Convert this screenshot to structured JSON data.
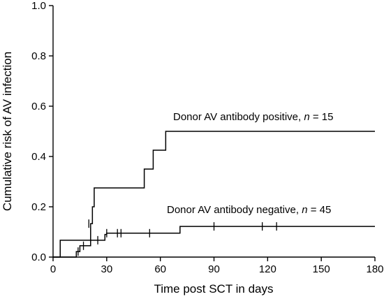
{
  "chart_data": {
    "type": "line",
    "step": true,
    "xlabel": "Time post SCT in days",
    "ylabel": "Cumulative risk of AV infection",
    "xlim": [
      0,
      180
    ],
    "ylim": [
      0,
      1.0
    ],
    "xticks": [
      0,
      30,
      60,
      90,
      120,
      150,
      180
    ],
    "yticks": [
      0.0,
      0.2,
      0.4,
      0.6,
      0.8,
      1.0
    ],
    "ytick_labels": [
      "0.0",
      "0.2",
      "0.4",
      "0.6",
      "0.8",
      "1.0"
    ],
    "grid": false,
    "legend": "none",
    "annotations": [
      {
        "prefix": "Donor AV antibody positive, ",
        "n_symbol": "n",
        "suffix": " = 15"
      },
      {
        "prefix": "Donor AV antibody negative, ",
        "n_symbol": "n",
        "suffix": " = 45"
      }
    ],
    "series": [
      {
        "steps": [
          [
            0,
            0.0
          ],
          [
            4,
            0.067
          ],
          [
            21,
            0.133
          ],
          [
            22,
            0.2
          ],
          [
            23,
            0.275
          ],
          [
            51,
            0.35
          ],
          [
            56,
            0.425
          ],
          [
            63,
            0.5
          ],
          [
            180,
            0.5
          ]
        ],
        "censored": [
          [
            20,
            0.133
          ]
        ]
      },
      {
        "steps": [
          [
            0,
            0.0
          ],
          [
            13,
            0.022
          ],
          [
            15,
            0.045
          ],
          [
            21,
            0.067
          ],
          [
            29,
            0.09
          ],
          [
            30,
            0.095
          ],
          [
            71,
            0.122
          ],
          [
            180,
            0.122
          ]
        ],
        "censored": [
          [
            14,
            0.022
          ],
          [
            17,
            0.045
          ],
          [
            25,
            0.067
          ],
          [
            30,
            0.095
          ],
          [
            36,
            0.095
          ],
          [
            38,
            0.095
          ],
          [
            54,
            0.095
          ],
          [
            90,
            0.122
          ],
          [
            117,
            0.122
          ],
          [
            125,
            0.122
          ]
        ]
      }
    ]
  }
}
